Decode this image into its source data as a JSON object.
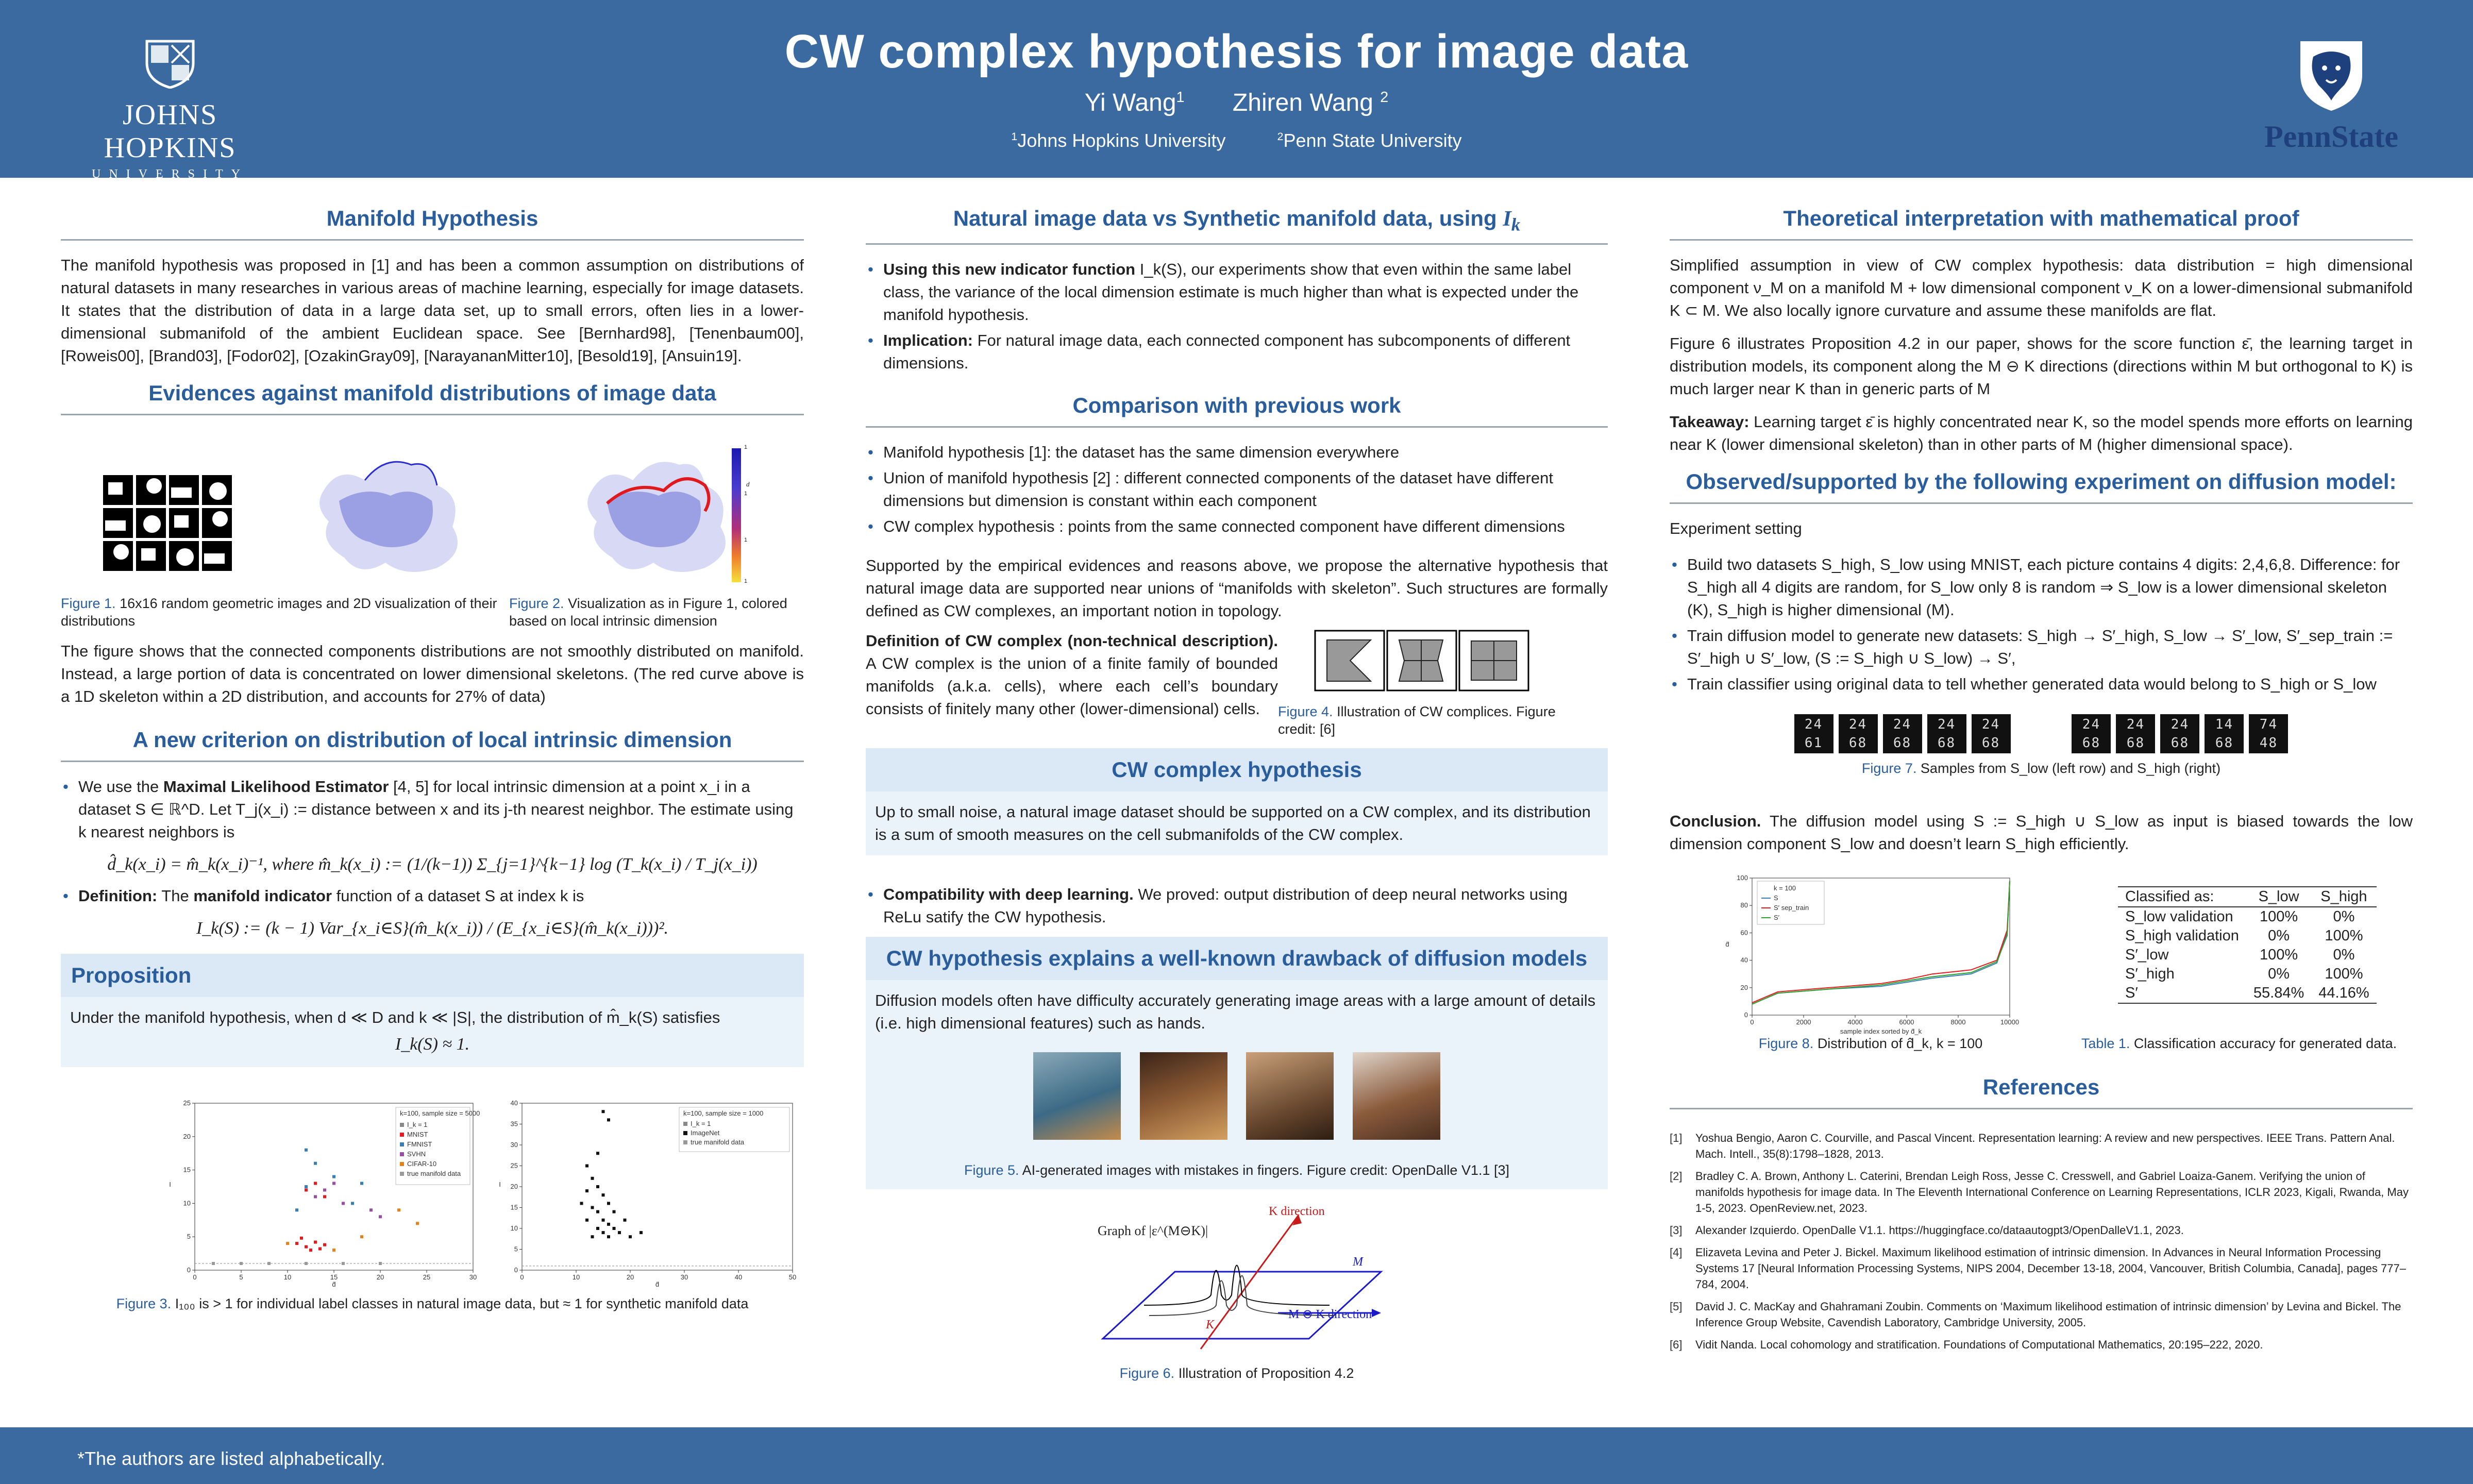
{
  "header": {
    "title": "CW complex hypothesis for image data",
    "author1": "Yi Wang",
    "author1_sup": "1",
    "author2": "Zhiren Wang",
    "author2_sup": "2",
    "affil1_sup": "1",
    "affil1": "Johns Hopkins University",
    "affil2_sup": "2",
    "affil2": "Penn State University",
    "logo_left_name": "JOHNS HOPKINS",
    "logo_left_sub": "UNIVERSITY",
    "logo_right_name": "PennState"
  },
  "footer": {
    "note": "*The authors are listed alphabetically."
  },
  "col1": {
    "manifold": {
      "title": "Manifold Hypothesis",
      "text": "The manifold hypothesis was proposed in [1] and has been a common assumption on distributions of natural datasets in many researches in various areas of machine learning, especially for image datasets. It states that the distribution of data in a large data set, up to small errors, often lies in a lower-dimensional submanifold of the ambient Euclidean space. See [Bernhard98], [Tenenbaum00], [Roweis00], [Brand03], [Fodor02], [OzakinGray09], [NarayananMitter10], [Besold19], [Ansuin19]."
    },
    "evidence": {
      "title": "Evidences against manifold distributions of image data",
      "fig1_label": "Figure 1.",
      "fig1_caption": "16x16 random geometric images and 2D visualization of their distributions",
      "fig2_label": "Figure 2.",
      "fig2_caption": "Visualization as in Figure 1, colored based on local intrinsic dimension",
      "colorbar_ticks": [
        "1",
        "1",
        "1",
        "1"
      ],
      "colorbar_label": "d",
      "text": "The figure shows that the connected components distributions are not smoothly distributed on manifold. Instead, a large portion of data is concentrated on lower dimensional skeletons. (The red curve above is a 1D skeleton within a 2D distribution, and accounts for 27% of data)"
    },
    "criterion": {
      "title": "A new criterion on distribution of local intrinsic dimension",
      "b1_pre": "We use the ",
      "b1_bold": "Maximal Likelihood Estimator",
      "b1_post": " [4, 5] for local intrinsic dimension at a point x_i in a dataset S ∈ ℝ^D. Let T_j(x_i) := distance between x and its j-th nearest neighbor. The estimate using k nearest neighbors is",
      "eq1": "d̂_k(x_i) = m̂_k(x_i)⁻¹,  where  m̂_k(x_i) := (1/(k−1)) Σ_{j=1}^{k−1} log (T_k(x_i) / T_j(x_i))",
      "b2_bold": "Definition:",
      "b2_mid": "  The ",
      "b2_bold2": "manifold indicator",
      "b2_post": " function of a dataset S at index k is",
      "eq2": "I_k(S) := (k − 1) Var_{x_i∈S}(m̂_k(x_i)) / (E_{x_i∈S}(m̂_k(x_i)))²."
    },
    "proposition": {
      "title": "Proposition",
      "text": "Under the manifold hypothesis, when d ≪ D and k ≪ |S|, the distribution of m̂_k(S) satisfies",
      "eq": "I_k(S) ≈ 1."
    },
    "fig3": {
      "label": "Figure 3.",
      "caption": "I₁₀₀ is > 1 for individual label classes in natural image data, but ≈ 1 for synthetic manifold data"
    }
  },
  "col2": {
    "natural": {
      "title_pre": "Natural image data vs Synthetic manifold data, using ",
      "title_math": "I",
      "title_sub": "k",
      "b1_bold": "Using this new indicator function",
      "b1_post": " I_k(S), our experiments show that even within the same label class, the variance of the local dimension estimate is much higher than what is expected under the manifold hypothesis.",
      "b2_bold": "Implication:",
      "b2_post": " For natural image data, each connected component has subcomponents of different dimensions."
    },
    "comparison": {
      "title": "Comparison with previous work",
      "items": [
        "Manifold hypothesis [1]: the dataset has the same dimension everywhere",
        "Union of manifold hypothesis [2] : different connected components of the dataset have different dimensions but dimension is constant within each component",
        "CW complex hypothesis : points from the same connected component have different dimensions"
      ],
      "text": "Supported by the empirical evidences and reasons above, we propose the alternative hypothesis that natural image data are supported near unions of “manifolds with skeleton”. Such structures are formally defined as CW complexes, an important notion in topology.",
      "def_bold": "Definition of CW complex (non-technical description).",
      "def_text": " A CW complex is the union of a finite family of bounded manifolds (a.k.a. cells), where each cell’s boundary consists of finitely many other (lower-dimensional) cells.",
      "fig4_label": "Figure 4.",
      "fig4_caption": "Illustration of CW complices. Figure credit: [6]"
    },
    "cw": {
      "title": "CW complex hypothesis",
      "text": "Up to small noise, a natural image dataset should be supported on a CW complex, and its distribution is a sum of smooth measures on the cell submanifolds of the CW complex.",
      "b_bold": "Compatibility with deep learning.",
      "b_post": " We proved: output distribution of deep neural networks using ReLu satify the CW hypothesis."
    },
    "drawback": {
      "title": "CW hypothesis explains a well-known drawback of diffusion models",
      "text": "Diffusion models often have difficulty accurately generating image areas with a large amount of details (i.e. high dimensional features) such as hands.",
      "fig5_label": "Figure 5.",
      "fig5_caption": "AI-generated images with mistakes in fingers. Figure credit: OpenDalle V1.1 [3]"
    },
    "fig6": {
      "graph_label": "Graph of |ε^(M⊖K)|",
      "k_dir": "K direction",
      "m_minus_k": "M ⊖ K direction",
      "m_label": "M",
      "k_label": "K",
      "label": "Figure 6.",
      "caption": "Illustration of Proposition 4.2"
    }
  },
  "col3": {
    "theory": {
      "title": "Theoretical interpretation with mathematical proof",
      "p1": "Simplified assumption in view of CW complex hypothesis: data distribution = high dimensional component ν_M on a manifold M + low dimensional component ν_K on a lower-dimensional submanifold K ⊂ M. We also locally ignore curvature and assume these manifolds are flat.",
      "p2": "Figure 6 illustrates Proposition 4.2 in our paper, shows for the score function ε̄, the learning target in distribution models, its component along the M ⊖ K directions (directions within M but orthogonal to K) is much larger near K than in generic parts of M",
      "takeaway_bold": "Takeaway:",
      "takeaway_text": " Learning target ε̄ is highly concentrated near K, so the model spends more efforts on learning near K (lower dimensional skeleton) than in other parts of M (higher dimensional space)."
    },
    "experiment": {
      "title": "Observed/supported by the following experiment on diffusion model:",
      "setting": "Experiment setting",
      "items": [
        "Build two datasets S_high, S_low using MNIST, each picture contains 4 digits: 2,4,6,8. Difference: for S_high all 4 digits are random, for S_low only 8 is random ⇒ S_low is a lower dimensional skeleton (K), S_high is higher dimensional (M).",
        "Train diffusion model to generate new datasets: S_high → S′_high, S_low → S′_low, S′_sep_train := S′_high ∪ S′_low, (S := S_high ∪ S_low) → S′,",
        "Train classifier using original data to tell whether generated data would belong to S_high or S_low"
      ],
      "mnist_left": [
        "24 61",
        "24 68",
        "24 68",
        "24 68",
        "24 68"
      ],
      "mnist_right": [
        "24 68",
        "24 68",
        "24 68",
        "14 68",
        "74 48"
      ],
      "fig7_label": "Figure 7.",
      "fig7_caption": "Samples from S_low (left row) and S_high (right)",
      "conclusion_bold": "Conclusion.",
      "conclusion_text": "  The diffusion model using S := S_high ∪ S_low as input is biased towards the low dimension component S_low and doesn’t learn S_high efficiently.",
      "fig8_label": "Figure 8.",
      "fig8_caption": "Distribution of d̂_k, k = 100",
      "table1_label": "Table 1.",
      "table1_caption": "Classification accuracy for generated data.",
      "table": {
        "header": [
          "Classified as:",
          "S_low",
          "S_high"
        ],
        "rows": [
          [
            "S_low validation",
            "100%",
            "0%"
          ],
          [
            "S_high validation",
            "0%",
            "100%"
          ],
          [
            "S′_low",
            "100%",
            "0%"
          ],
          [
            "S′_high",
            "0%",
            "100%"
          ],
          [
            "S′",
            "55.84%",
            "44.16%"
          ]
        ]
      }
    },
    "references": {
      "title": "References",
      "items": [
        {
          "num": "[1]",
          "text": "Yoshua Bengio, Aaron C. Courville, and Pascal Vincent. Representation learning: A review and new perspectives. IEEE Trans. Pattern Anal. Mach. Intell., 35(8):1798–1828, 2013."
        },
        {
          "num": "[2]",
          "text": "Bradley C. A. Brown, Anthony L. Caterini, Brendan Leigh Ross, Jesse C. Cresswell, and Gabriel Loaiza-Ganem. Verifying the union of manifolds hypothesis for image data. In The Eleventh International Conference on Learning Representations, ICLR 2023, Kigali, Rwanda, May 1-5, 2023. OpenReview.net, 2023."
        },
        {
          "num": "[3]",
          "text": "Alexander Izquierdo. OpenDalle V1.1. https://huggingface.co/dataautogpt3/OpenDalleV1.1, 2023."
        },
        {
          "num": "[4]",
          "text": "Elizaveta Levina and Peter J. Bickel. Maximum likelihood estimation of intrinsic dimension. In Advances in Neural Information Processing Systems 17 [Neural Information Processing Systems, NIPS 2004, December 13-18, 2004, Vancouver, British Columbia, Canada], pages 777–784, 2004."
        },
        {
          "num": "[5]",
          "text": "David J. C. MacKay and Ghahramani Zoubin. Comments on ‘Maximum likelihood estimation of intrinsic dimension’ by Levina and Bickel. The Inference Group Website, Cavendish Laboratory, Cambridge University, 2005."
        },
        {
          "num": "[6]",
          "text": "Vidit Nanda. Local cohomology and stratification. Foundations of Computational Mathematics, 20:195–222, 2020."
        }
      ]
    }
  },
  "chart_data": [
    {
      "type": "scatter",
      "name_ref": "figure3-left",
      "legend_title": "k=100, sample size = 5000",
      "legend": [
        "I_k = 1",
        "MNIST",
        "FMNIST",
        "SVHN",
        "CIFAR-10",
        "true manifold data"
      ],
      "series_colors": [
        "#888888",
        "#e41a1c",
        "#377eb8",
        "#984ea3",
        "#e8801a",
        "#999999"
      ],
      "xlabel": "d̂",
      "ylabel": "I",
      "xlim": [
        0,
        30
      ],
      "ylim": [
        0,
        25
      ],
      "x_ticks": [
        "0",
        "5",
        "10",
        "15",
        "20",
        "25",
        "30"
      ],
      "y_ticks": [
        "0",
        "5",
        "10",
        "15",
        "20",
        "25"
      ],
      "series": [
        {
          "name": "MNIST",
          "points": [
            [
              11,
              4
            ],
            [
              12,
              3.5
            ],
            [
              13,
              4.2
            ],
            [
              14,
              3.8
            ],
            [
              12.5,
              3
            ],
            [
              11.5,
              4.8
            ],
            [
              13.5,
              3.2
            ],
            [
              12,
              12
            ],
            [
              13,
              13
            ],
            [
              14,
              11
            ]
          ]
        },
        {
          "name": "FMNIST",
          "points": [
            [
              12,
              18
            ],
            [
              13,
              16
            ],
            [
              15,
              14
            ],
            [
              18,
              13
            ],
            [
              12,
              12.5
            ],
            [
              17,
              10
            ],
            [
              11,
              9
            ]
          ]
        },
        {
          "name": "SVHN",
          "points": [
            [
              13,
              11
            ],
            [
              14,
              12
            ],
            [
              15,
              13
            ],
            [
              16,
              10
            ],
            [
              19,
              9
            ],
            [
              20,
              8
            ]
          ]
        },
        {
          "name": "CIFAR-10",
          "points": [
            [
              10,
              4
            ],
            [
              15,
              3
            ],
            [
              22,
              9
            ],
            [
              24,
              7
            ],
            [
              18,
              5
            ]
          ]
        },
        {
          "name": "true manifold data",
          "points": [
            [
              2,
              1
            ],
            [
              5,
              1
            ],
            [
              8,
              1
            ],
            [
              12,
              1
            ],
            [
              16,
              1
            ],
            [
              20,
              1
            ]
          ]
        }
      ]
    },
    {
      "type": "scatter",
      "name_ref": "figure3-right",
      "legend_title": "k=100, sample size = 1000",
      "legend": [
        "I_k = 1",
        "ImageNet",
        "true manifold data"
      ],
      "series_colors": [
        "#888888",
        "#111111",
        "#999999"
      ],
      "xlabel": "d̂",
      "ylabel": "I",
      "xlim": [
        0,
        50
      ],
      "ylim": [
        0,
        40
      ],
      "x_ticks": [
        "0",
        "10",
        "20",
        "30",
        "40",
        "50"
      ],
      "y_ticks": [
        "0",
        "5",
        "10",
        "15",
        "20",
        "25",
        "30",
        "35",
        "40"
      ],
      "series": [
        {
          "name": "ImageNet",
          "points": [
            [
              12,
              25
            ],
            [
              13,
              22
            ],
            [
              14,
              20
            ],
            [
              15,
              18
            ],
            [
              16,
              16
            ],
            [
              13,
              15
            ],
            [
              14,
              14
            ],
            [
              15,
              12
            ],
            [
              16,
              11
            ],
            [
              17,
              10
            ],
            [
              18,
              9
            ],
            [
              12,
              12
            ],
            [
              14,
              10
            ],
            [
              15,
              9
            ],
            [
              13,
              8
            ],
            [
              16,
              8
            ],
            [
              20,
              8
            ],
            [
              22,
              9
            ],
            [
              15,
              38
            ],
            [
              16,
              36
            ],
            [
              12,
              19
            ],
            [
              17,
              14
            ],
            [
              19,
              12
            ],
            [
              11,
              16
            ],
            [
              14,
              28
            ]
          ]
        }
      ]
    },
    {
      "type": "line",
      "name_ref": "figure8",
      "legend": [
        "k = 100",
        "S",
        "S′ sep_train",
        "S′"
      ],
      "xlabel": "sample index sorted by d̂_k",
      "ylabel": "d̂",
      "xlim": [
        0,
        10000
      ],
      "ylim": [
        0,
        100
      ],
      "x_ticks": [
        "0",
        "2000",
        "4000",
        "6000",
        "8000",
        "10000"
      ],
      "y_ticks": [
        "0",
        "20",
        "40",
        "60",
        "80",
        "100"
      ],
      "series": [
        {
          "name": "S",
          "color": "#377eb8",
          "points": [
            [
              0,
              8
            ],
            [
              1000,
              16
            ],
            [
              3000,
              19
            ],
            [
              5000,
              21
            ],
            [
              6000,
              24
            ],
            [
              7000,
              27
            ],
            [
              8500,
              30
            ],
            [
              9500,
              38
            ],
            [
              9900,
              60
            ],
            [
              10000,
              98
            ]
          ]
        },
        {
          "name": "S′ sep_train",
          "color": "#e41a1c",
          "points": [
            [
              0,
              9
            ],
            [
              1000,
              17
            ],
            [
              3000,
              20
            ],
            [
              5000,
              23
            ],
            [
              6000,
              26
            ],
            [
              7000,
              30
            ],
            [
              8500,
              33
            ],
            [
              9500,
              40
            ],
            [
              9900,
              62
            ],
            [
              10000,
              98
            ]
          ]
        },
        {
          "name": "S′",
          "color": "#2ca02c",
          "points": [
            [
              0,
              8
            ],
            [
              1000,
              16
            ],
            [
              3000,
              19
            ],
            [
              5000,
              22
            ],
            [
              6000,
              25
            ],
            [
              7000,
              28
            ],
            [
              8500,
              31
            ],
            [
              9500,
              39
            ],
            [
              9900,
              58
            ],
            [
              10000,
              98
            ]
          ]
        }
      ]
    }
  ]
}
